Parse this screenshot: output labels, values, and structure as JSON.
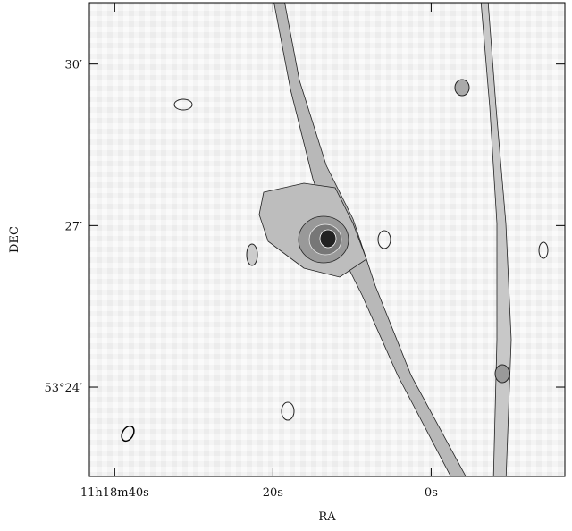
{
  "chart_data": {
    "type": "contour",
    "xlabel": "RA",
    "ylabel": "DEC",
    "xlim": [
      43.2,
      -16.9
    ],
    "xticks": [
      {
        "value": 40,
        "label": "11h18m40s"
      },
      {
        "value": 20,
        "label": "20s"
      },
      {
        "value": 0,
        "label": "0s"
      }
    ],
    "ylim": [
      22.34,
      31.14
    ],
    "yticks": [
      {
        "value": 30,
        "label": "30′"
      },
      {
        "value": 27,
        "label": "27′"
      },
      {
        "value": 24,
        "label": "53°24′"
      }
    ]
  }
}
